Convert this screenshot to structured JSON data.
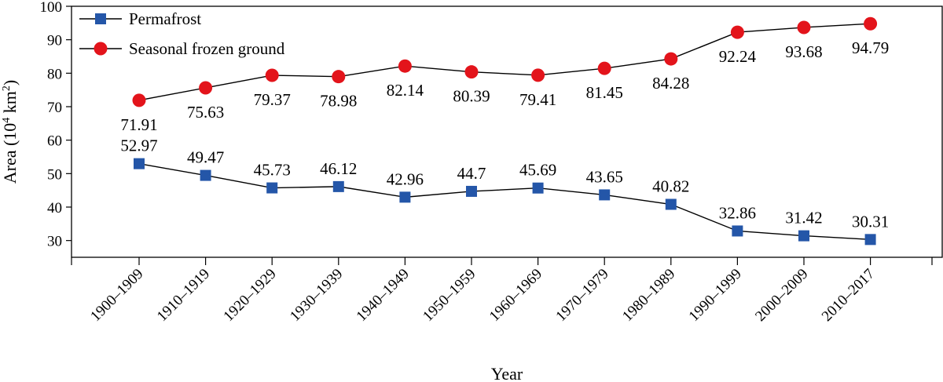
{
  "chart_data": {
    "type": "line",
    "xlabel": "Year",
    "ylabel": "Area (10",
    "ylabel_sup1": "4",
    "ylabel_mid": " km",
    "ylabel_sup2": "2",
    "ylabel_end": ")",
    "ylim": [
      25,
      100
    ],
    "yticks": [
      30,
      40,
      50,
      60,
      70,
      80,
      90,
      100
    ],
    "categories": [
      "1900–1909",
      "1910–1919",
      "1920–1929",
      "1930–1939",
      "1940–1949",
      "1950–1959",
      "1960–1969",
      "1970–1979",
      "1980–1989",
      "1990–1999",
      "2000–2009",
      "2010–2017"
    ],
    "series": [
      {
        "name": "Permafrost",
        "marker": "square",
        "color": "#2456a8",
        "values": [
          52.97,
          49.47,
          45.73,
          46.12,
          42.96,
          44.7,
          45.69,
          43.65,
          40.82,
          32.86,
          31.42,
          30.31
        ],
        "labels": [
          "52.97",
          "49.47",
          "45.73",
          "46.12",
          "42.96",
          "44.7",
          "45.69",
          "43.65",
          "40.82",
          "32.86",
          "31.42",
          "30.31"
        ],
        "label_position": "above"
      },
      {
        "name": "Seasonal frozen ground",
        "marker": "circle",
        "color": "#e3141b",
        "values": [
          71.91,
          75.63,
          79.37,
          78.98,
          82.14,
          80.39,
          79.41,
          81.45,
          84.28,
          92.24,
          93.68,
          94.79
        ],
        "labels": [
          "71.91",
          "75.63",
          "79.37",
          "78.98",
          "82.14",
          "80.39",
          "79.41",
          "81.45",
          "84.28",
          "92.24",
          "93.68",
          "94.79"
        ],
        "label_position": "below"
      }
    ],
    "legend_position": "top-left",
    "grid": false,
    "line_color": "#000000"
  }
}
